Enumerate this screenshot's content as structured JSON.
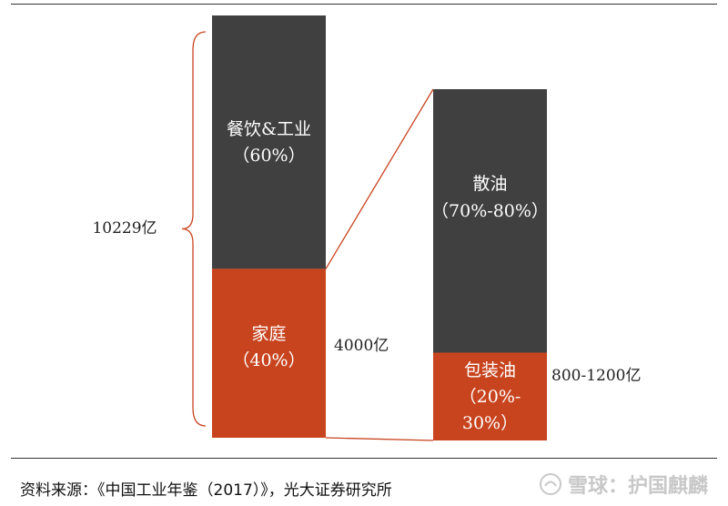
{
  "chart_data": {
    "type": "bar",
    "total_label": "10229亿",
    "bars": [
      {
        "segments": [
          {
            "label": "餐饮&工业",
            "share": "（60%）",
            "value_pct": 60,
            "color": "#404040"
          },
          {
            "label": "家庭",
            "share": "（40%）",
            "value_pct": 40,
            "color": "#c8441f",
            "side_label": "4000亿"
          }
        ]
      },
      {
        "segments": [
          {
            "label": "散油",
            "share": "（70%-80%）",
            "value_pct": 75,
            "color": "#404040"
          },
          {
            "label": "包装油",
            "share": "（20%-",
            "share2": "30%）",
            "value_pct": 25,
            "color": "#c8441f",
            "side_label": "800-1200亿"
          }
        ]
      }
    ]
  },
  "source": "资料来源：《中国工业年鉴（2017）》，光大证券研究所",
  "watermark": "雪球：护国麒麟"
}
